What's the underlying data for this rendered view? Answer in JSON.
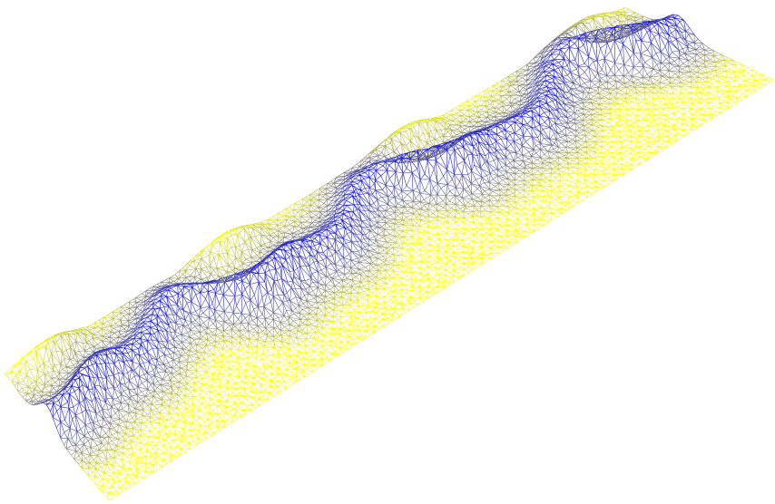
{
  "figure": {
    "kind": "triangulated-surface-wireframe",
    "background": "#ffffff",
    "color_low": "#0000ff",
    "color_high": "#ffff00"
  }
}
